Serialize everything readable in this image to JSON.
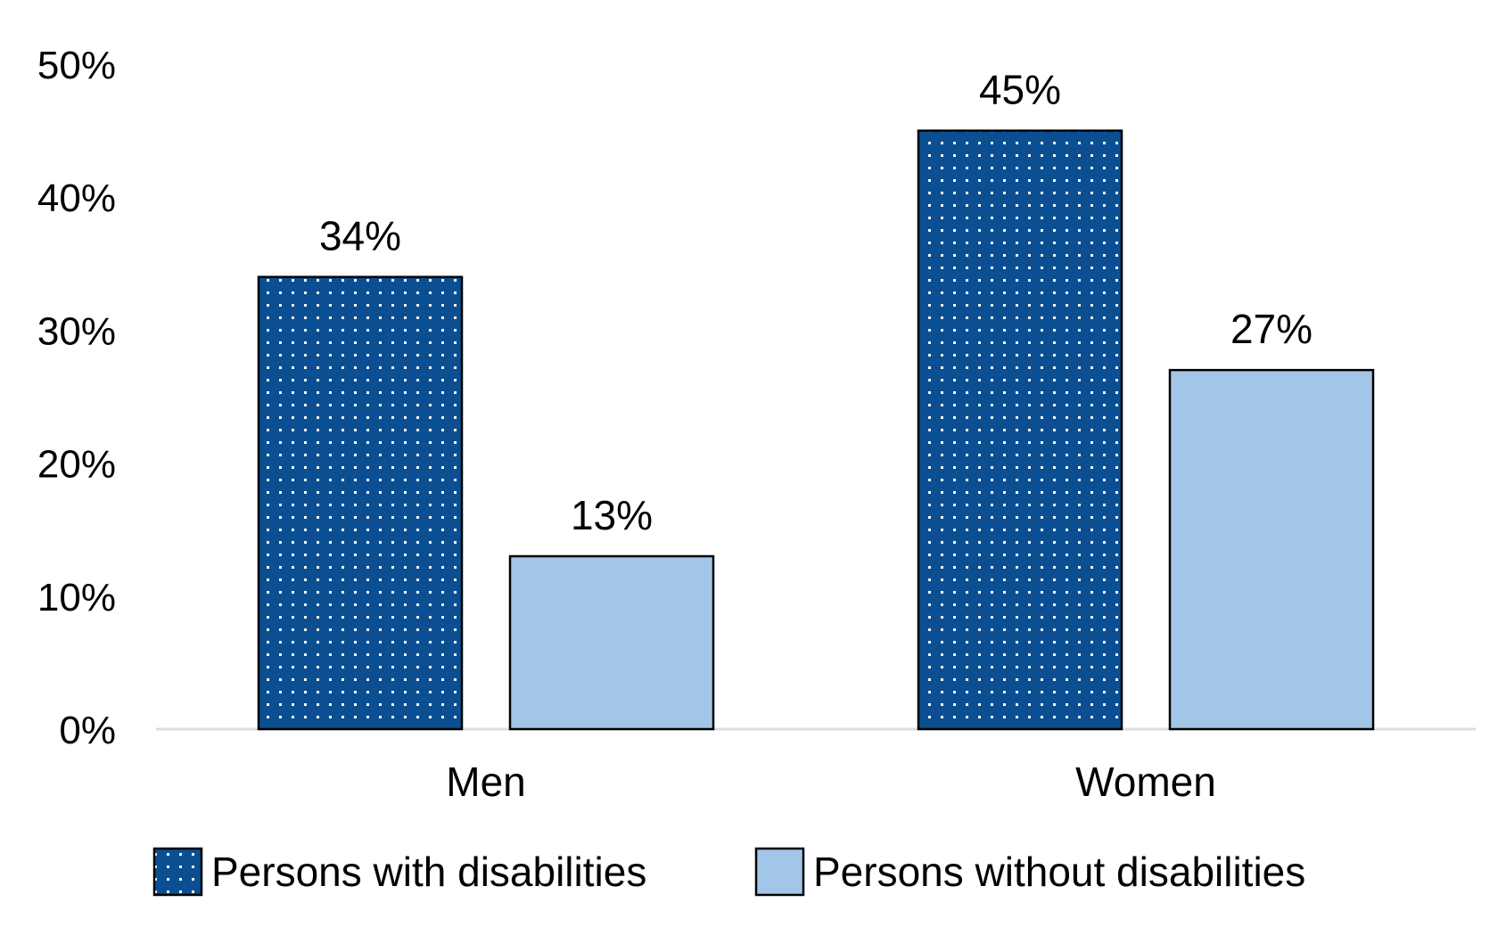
{
  "chart_data": {
    "type": "bar",
    "title": "",
    "xlabel": "",
    "ylabel": "",
    "categories": [
      "Men",
      "Women"
    ],
    "series": [
      {
        "name": "Persons with disabilities",
        "values": [
          34,
          45
        ],
        "color": "#0b4f92",
        "pattern": "dots"
      },
      {
        "name": "Persons without disabilities",
        "values": [
          13,
          27
        ],
        "color": "#a3c5e8",
        "pattern": "solid"
      }
    ],
    "data_labels": [
      [
        "34%",
        "45%"
      ],
      [
        "13%",
        "27%"
      ]
    ],
    "ylim": [
      0,
      50
    ],
    "yticks": [
      0,
      10,
      20,
      30,
      40,
      50
    ],
    "ytick_labels": [
      "0%",
      "10%",
      "20%",
      "30%",
      "40%",
      "50%"
    ],
    "grid": false,
    "legend_position": "bottom",
    "axis_color": "#d9dde6"
  }
}
